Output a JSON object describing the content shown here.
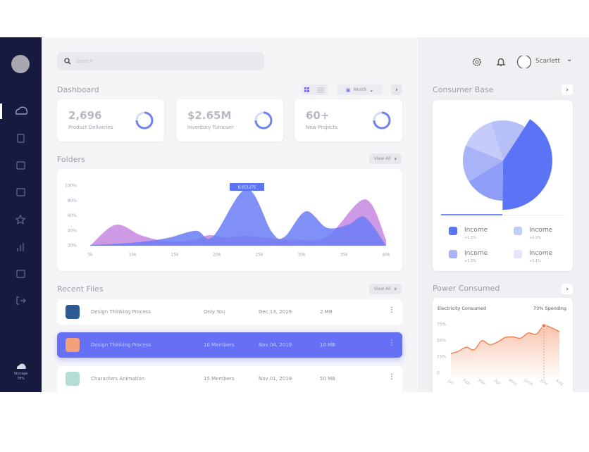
{
  "sidebar": {
    "storage": "Storage",
    "storage_used": "78%"
  },
  "search": {
    "placeholder": "Search"
  },
  "user": {
    "name": "Scarlett"
  },
  "dashboard": {
    "title": "Dashboard",
    "period": "Month",
    "stats": [
      {
        "value": "2,696",
        "label": "Product Deliveries"
      },
      {
        "value": "$2.65M",
        "label": "Inventory Turnover"
      },
      {
        "value": "60+",
        "label": "New Projects"
      }
    ]
  },
  "folders": {
    "title": "Folders",
    "view_all": "View All",
    "tooltip": "6,653,275",
    "chart": {
      "type": "area",
      "xlim": [
        5,
        40
      ],
      "ylim": [
        20,
        100
      ],
      "xticks": [
        {
          "value": 5,
          "label": "5k"
        },
        {
          "value": 10,
          "label": "10k"
        },
        {
          "value": 15,
          "label": "15k"
        },
        {
          "value": 20,
          "label": "20k"
        },
        {
          "value": 25,
          "label": "25k"
        },
        {
          "value": 30,
          "label": "30k"
        },
        {
          "value": 35,
          "label": "35k"
        },
        {
          "value": 40,
          "label": "40k"
        }
      ],
      "yticks": [
        {
          "value": 100,
          "label": "100%"
        },
        {
          "value": 80,
          "label": "80%"
        },
        {
          "value": 60,
          "label": "60%"
        },
        {
          "value": 40,
          "label": "40%"
        },
        {
          "value": 20,
          "label": "20%"
        }
      ],
      "series": [
        {
          "color": "#c47fe0",
          "x": [
            5,
            8,
            11,
            14,
            17,
            19,
            21,
            23.5,
            26.5,
            29,
            33,
            37.5,
            40
          ],
          "values": [
            20,
            48,
            34,
            26,
            27,
            34,
            31,
            33,
            30,
            28,
            32,
            82,
            28
          ]
        },
        {
          "color": "#6a7cf4",
          "x": [
            5,
            10,
            14,
            17.5,
            19.5,
            23.5,
            26.5,
            28,
            30.5,
            33,
            35.5,
            37.5,
            40
          ],
          "values": [
            21,
            24,
            30,
            40,
            32,
            96,
            38,
            32,
            66,
            44,
            48,
            58,
            20
          ]
        }
      ]
    }
  },
  "recent_files": {
    "title": "Recent Files",
    "view_all": "View All",
    "rows": [
      {
        "name": "Design Thinking Process",
        "shared": "Only You",
        "date": "Dec 13, 2019",
        "size": "2 MB",
        "color": "#2c5b93"
      },
      {
        "name": "Design Thinking Process",
        "shared": "10 Members",
        "date": "Nov 04, 2019",
        "size": "10 MB",
        "color": "#f4a07b"
      },
      {
        "name": "Characters Animation",
        "shared": "15 Members",
        "date": "Nov 01, 2019",
        "size": "50 MB",
        "color": "#b4ddd5"
      }
    ]
  },
  "consumer_base": {
    "title": "Consumer Base",
    "chart": {
      "type": "pie",
      "values": [
        41,
        16,
        15,
        14,
        14
      ],
      "colors": [
        "#5b73f5",
        "#8e9df6",
        "#a9b4f8",
        "#c5ccf9",
        "#b6bff8"
      ]
    },
    "legend": [
      {
        "label": "Income",
        "change": "+1.1%",
        "color": "#5b73f5"
      },
      {
        "label": "Income",
        "change": "+1.1%",
        "color": "#c5ccf9"
      },
      {
        "label": "Income",
        "change": "+1.1%",
        "color": "#a9b4f8"
      },
      {
        "label": "Income",
        "change": "+1.1%",
        "color": "#e3e6fc"
      }
    ]
  },
  "power": {
    "title": "Power Consumed",
    "card_title": "Electricity Consumed",
    "spending": "73% Spending",
    "chart": {
      "type": "line",
      "color": "#f07c4a",
      "ylim": [
        0,
        75
      ],
      "yticks": [
        {
          "value": 75,
          "label": "75%"
        },
        {
          "value": 50,
          "label": "50%"
        },
        {
          "value": 25,
          "label": "25%"
        },
        0
      ],
      "xticks": [
        {
          "value": 0,
          "label": "Jan"
        },
        {
          "value": 1,
          "label": "Feb"
        },
        {
          "value": 2,
          "label": "Mar"
        },
        {
          "value": 3,
          "label": "Apr"
        },
        {
          "value": 4,
          "label": "May"
        },
        {
          "value": 5,
          "label": "June"
        },
        {
          "value": 6,
          "label": "July"
        },
        {
          "value": 7,
          "label": "Aug"
        }
      ],
      "x": [
        0,
        0.5,
        1,
        1.5,
        2,
        2.5,
        3,
        3.5,
        4,
        4.5,
        5,
        5.5,
        6,
        6.5,
        7
      ],
      "values": [
        30,
        34,
        40,
        36,
        50,
        44,
        48,
        55,
        56,
        54,
        62,
        60,
        73,
        70,
        64
      ]
    }
  }
}
